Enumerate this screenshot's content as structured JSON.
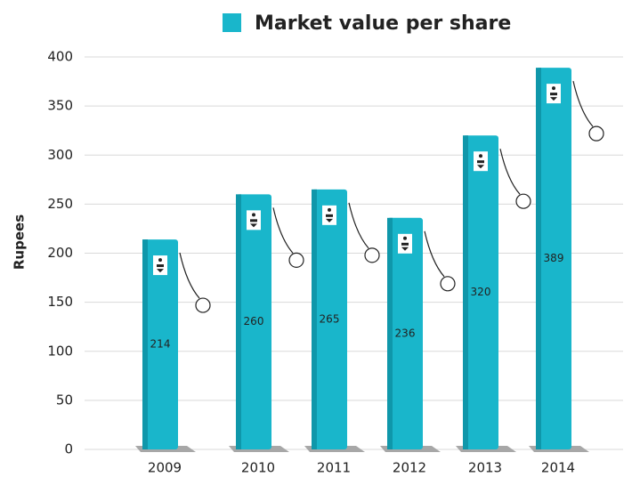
{
  "chart_data": {
    "type": "bar",
    "title": "Market value per share",
    "y_label": "Rupees",
    "categories": [
      "2009",
      "2010",
      "2011",
      "2012",
      "2013",
      "2014"
    ],
    "values": [
      214,
      260,
      265,
      236,
      320,
      389
    ],
    "color": "#19b6cb",
    "ylim": [
      0,
      400
    ],
    "yticks": [
      0,
      50,
      100,
      150,
      200,
      250,
      300,
      350,
      400
    ],
    "grid": true
  }
}
